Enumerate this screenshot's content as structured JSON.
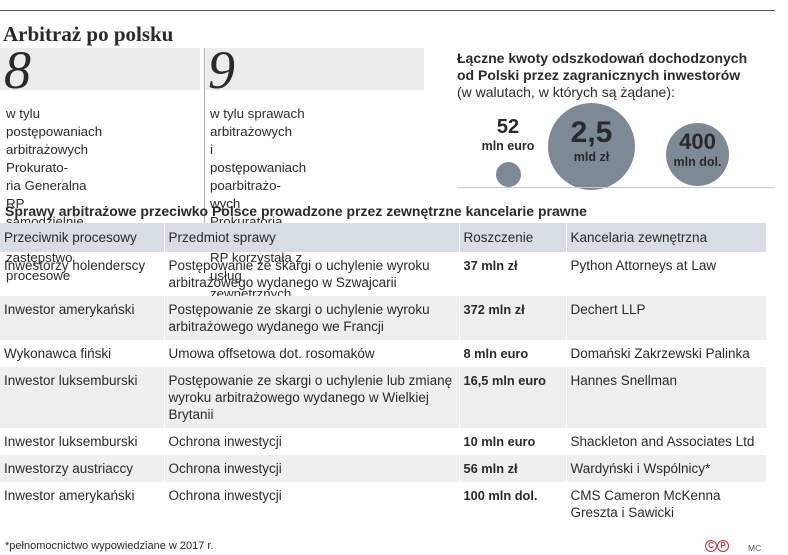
{
  "title": "Arbitraż po polsku",
  "stats": [
    {
      "number": "8",
      "lines": [
        "w tylu postępowaniach",
        "arbitrażowych Prokurato-",
        "ria Generalna RP",
        "samodzielnie wykonywała",
        "zastępstwo procesowe"
      ]
    },
    {
      "number": "9",
      "lines": [
        "w tylu sprawach arbitrażowych",
        "i postępowaniach poarbitrażo-",
        "wych Prokuratoria Generalna",
        "RP korzystała z usług",
        "zewnętrznych kancelarii"
      ]
    }
  ],
  "amounts": {
    "title_line1": "Łączne kwoty odszkodowań dochodzonych",
    "title_line2": "od Polski przez zagranicznych inwestorów",
    "subtitle": "(w walutach, w których są żądane):",
    "bubbles": [
      {
        "value": "52",
        "unit": "mln euro",
        "color": "#7d8a96"
      },
      {
        "value": "2,5",
        "unit": "mld zł",
        "color": "#7d8a96"
      },
      {
        "value": "400",
        "unit": "mln dol.",
        "color": "#7d8a96"
      }
    ]
  },
  "table": {
    "title": "Sprawy arbitrażowe przeciwko Polsce prowadzone przez zewnętrzne kancelarie prawne",
    "headers": [
      "Przeciwnik procesowy",
      "Przedmiot sprawy",
      "Roszczenie",
      "Kancelaria zewnętrzna"
    ],
    "rows": [
      {
        "party": "Inwestorzy holenderscy",
        "subject": "Postępowanie ze skargi o uchylenie wyroku arbitrażowego wydanego w Szwajcarii",
        "claim": "37 mln zł",
        "firm": "Python Attorneys at Law"
      },
      {
        "party": "Inwestor amerykański",
        "subject": "Postępowanie ze skargi o uchylenie wyroku arbitrażowego wydanego we Francji",
        "claim": "372 mln zł",
        "firm": "Dechert LLP"
      },
      {
        "party": "Wykonawca fiński",
        "subject": "Umowa offsetowa dot. rosomaków",
        "claim": "8 mln euro",
        "firm": "Domański Zakrzewski Palinka"
      },
      {
        "party": "Inwestor luksemburski",
        "subject": "Postępowanie ze skargi o uchylenie lub zmianę wyroku arbitrażowego wydanego w Wielkiej Brytanii",
        "claim": "16,5 mln euro",
        "firm": "Hannes Snellman"
      },
      {
        "party": "Inwestor luksemburski",
        "subject": "Ochrona inwestycji",
        "claim": "10 mln euro",
        "firm": "Shackleton and Associates Ltd"
      },
      {
        "party": "Inwestorzy austriaccy",
        "subject": "Ochrona inwestycji",
        "claim": "56 mln zł",
        "firm": "Wardyński i Wspólnicy*"
      },
      {
        "party": "Inwestor amerykański",
        "subject": "Ochrona inwestycji",
        "claim": "100 mln dol.",
        "firm": "CMS Cameron McKenna Greszta i Sawicki"
      }
    ]
  },
  "footnote": "*pełnomocnictwo wypowiedziane w 2017 r.",
  "credit": "MC"
}
